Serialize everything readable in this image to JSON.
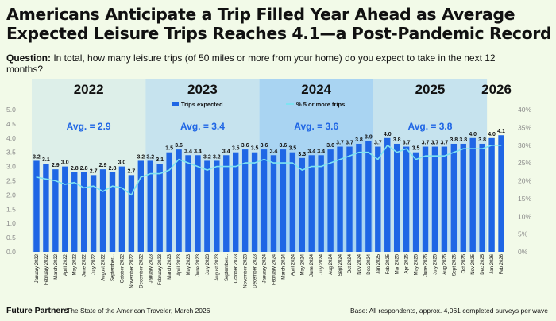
{
  "header": {
    "title": "Americans Anticipate a Trip Filled Year Ahead as Average Expected Leisure Trips Reaches 4.1—a Post-Pandemic Record",
    "question_label": "Question:",
    "question_text": "In total, how many leisure trips (of 50 miles or more from your home) do you expect to take in the next 12 months?"
  },
  "footer": {
    "brand": "Future Partners",
    "source": "The State of the American Traveler, March 2026",
    "base": "Base: All respondents, approx. 4,061 completed surveys per wave"
  },
  "colors": {
    "bar": "#1f66e5",
    "line": "#7fe3f2",
    "band_2022": "#ddefe9",
    "band_2023": "#c6e3ee",
    "band_2024": "#a9d4f2",
    "band_2025": "#c6e3ee",
    "avg_text": "#1f66e5"
  },
  "chart_data": {
    "type": "bar",
    "title": "Americans Anticipate a Trip Filled Year Ahead as Average Expected Leisure Trips Reaches 4.1—a Post-Pandemic Record",
    "categories": [
      "January 2022",
      "February 2022",
      "March 2022",
      "April 2022",
      "May 2022",
      "June 2022",
      "July 2022",
      "August 2022",
      "September...",
      "October 2022",
      "November 2022",
      "December 2022",
      "January 2023",
      "February 2023",
      "March 2023",
      "April 2023",
      "May 2023",
      "June 2023",
      "July 2023",
      "August 2023",
      "September...",
      "October 2023",
      "November 2023",
      "December 2023",
      "January 2024",
      "February 2024",
      "March 2024",
      "April 2024",
      "May 2024",
      "June 2024",
      "July 2024",
      "Aug 2024",
      "Sept 2024",
      "Oct 2024",
      "Nov 2024",
      "Dec 2024",
      "Jan 2025",
      "Feb 2025",
      "Mar 2025",
      "Apr 2025",
      "May 2025",
      "June 2025",
      "July 2025",
      "Aug 2025",
      "Sept 2025",
      "Oct 2025",
      "Nov 2025",
      "Dec 2025",
      "Jan 2026",
      "Feb 2026"
    ],
    "series": [
      {
        "name": "Trips expected",
        "axis": "left",
        "values": [
          3.2,
          3.1,
          2.9,
          3.0,
          2.8,
          2.8,
          2.7,
          2.9,
          2.8,
          3.0,
          2.7,
          3.2,
          3.2,
          3.1,
          3.5,
          3.6,
          3.4,
          3.4,
          3.2,
          3.2,
          3.4,
          3.5,
          3.6,
          3.5,
          3.6,
          3.4,
          3.6,
          3.5,
          3.3,
          3.4,
          3.4,
          3.6,
          3.7,
          3.7,
          3.8,
          3.9,
          3.7,
          4.0,
          3.8,
          3.7,
          3.5,
          3.7,
          3.7,
          3.7,
          3.8,
          3.8,
          4.0,
          3.8,
          4.0,
          4.1
        ],
        "labels": [
          "3.2",
          "3.1",
          "2.9",
          "3.0",
          "2.8",
          "2.8",
          "2.7",
          "2.9",
          "2.8",
          "3.0",
          "2.7",
          "3.2",
          "3.2",
          "3.1",
          "3.5",
          "3.6",
          "3.4",
          "3.4",
          "3.2",
          "3.2",
          "3.4",
          "3.5",
          "3.6",
          "3.5",
          "3.6",
          "3.4",
          "3.6",
          "3.5",
          "3.3",
          "3.4",
          "3.4",
          "3.6",
          "3.7",
          "3.7",
          "3.8",
          "3.9",
          "3.7",
          "4.0",
          "3.8",
          "3.7",
          "3.5",
          "3.7",
          "3.7",
          "3.7",
          "3.8",
          "3.8",
          "4.0",
          "3.8",
          "4.0",
          "4.1"
        ]
      },
      {
        "name": "% 5 or more trips",
        "axis": "right",
        "values": [
          21,
          20.5,
          20,
          19,
          19.5,
          18,
          18.5,
          17,
          18.5,
          18,
          16,
          21,
          22,
          22,
          23,
          26,
          25,
          24,
          23,
          24,
          24,
          24,
          25,
          25,
          26,
          25,
          25,
          25,
          23,
          24,
          24,
          25,
          26,
          27,
          28,
          28,
          26,
          30,
          28,
          29,
          26,
          27,
          27,
          27,
          28,
          29,
          29,
          29,
          30,
          30
        ]
      }
    ],
    "year_bands": [
      {
        "year": "2022",
        "avg": "Avg. = 2.9",
        "start": 0,
        "end": 11
      },
      {
        "year": "2023",
        "avg": "Avg. = 3.4",
        "start": 12,
        "end": 23
      },
      {
        "year": "2024",
        "avg": "Avg. = 3.6",
        "start": 24,
        "end": 35
      },
      {
        "year": "2025",
        "avg": "Avg. = 3.8",
        "start": 36,
        "end": 47
      },
      {
        "year": "2026",
        "avg": "",
        "start": 48,
        "end": 49
      }
    ],
    "left_axis": {
      "ylim": [
        0,
        5.0
      ],
      "ticks": [
        "0.0",
        "0.5",
        "1.0",
        "1.5",
        "2.0",
        "2.5",
        "3.0",
        "3.5",
        "4.0",
        "4.5",
        "5.0"
      ]
    },
    "right_axis": {
      "ylim": [
        0,
        40
      ],
      "ticks": [
        "0%",
        "5%",
        "10%",
        "15%",
        "20%",
        "25%",
        "30%",
        "35%",
        "40%"
      ]
    },
    "legend": {
      "position": "top-center",
      "entries": [
        "Trips expected",
        "% 5 or more trips"
      ]
    }
  }
}
